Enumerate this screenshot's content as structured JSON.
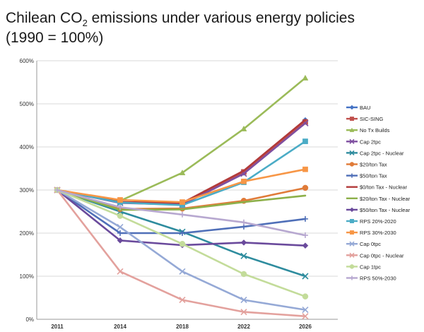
{
  "chart_data": {
    "type": "line",
    "title_parts": [
      "Chilean CO",
      "2",
      " emissions under various energy policies"
    ],
    "title_line2": "(1990 = 100%)",
    "categories": [
      "2011",
      "2014",
      "2018",
      "2022",
      "2026"
    ],
    "ylim": [
      0,
      600
    ],
    "yticks": [
      0,
      100,
      200,
      300,
      400,
      500,
      600
    ],
    "ytick_labels": [
      "0%",
      "100%",
      "200%",
      "300%",
      "400%",
      "500%",
      "600%"
    ],
    "grid": true,
    "legend_position": "right",
    "series": [
      {
        "name": "BAU",
        "color": "#4472C4",
        "marker": "diamond",
        "values": [
          300,
          272,
          270,
          340,
          462
        ]
      },
      {
        "name": "SIC-SING",
        "color": "#C0504D",
        "marker": "square",
        "values": [
          300,
          272,
          268,
          342,
          458
        ]
      },
      {
        "name": "No Tx Builds",
        "color": "#9BBB59",
        "marker": "triangle",
        "values": [
          300,
          275,
          340,
          442,
          560
        ]
      },
      {
        "name": "Cap 2tpc",
        "color": "#7F4FA0",
        "marker": "x",
        "values": [
          300,
          270,
          266,
          338,
          455
        ]
      },
      {
        "name": "Cap 2tpc - Nuclear",
        "color": "#2E8C9E",
        "marker": "x",
        "values": [
          300,
          250,
          203,
          147,
          100
        ]
      },
      {
        "name": "$20/ton Tax",
        "color": "#E07B39",
        "marker": "circle",
        "values": [
          300,
          256,
          257,
          275,
          305
        ]
      },
      {
        "name": "$50/ton Tax",
        "color": "#4F6FB8",
        "marker": "plus",
        "values": [
          300,
          200,
          200,
          215,
          233
        ]
      },
      {
        "name": "$0/ton Tax - Nuclear",
        "color": "#B23A3A",
        "marker": "none",
        "values": [
          300,
          272,
          270,
          345,
          463
        ]
      },
      {
        "name": "$20/ton Tax - Nuclear",
        "color": "#8DB04A",
        "marker": "none",
        "values": [
          300,
          254,
          255,
          272,
          287
        ]
      },
      {
        "name": "$50/ton Tax - Nuclear",
        "color": "#6A4A9C",
        "marker": "diamond",
        "values": [
          300,
          183,
          172,
          178,
          171
        ]
      },
      {
        "name": "RPS 20%-2020",
        "color": "#4BACC6",
        "marker": "square",
        "values": [
          300,
          271,
          265,
          318,
          413
        ]
      },
      {
        "name": "RPS 30%-2030",
        "color": "#F79646",
        "marker": "square",
        "values": [
          300,
          277,
          272,
          320,
          348
        ]
      },
      {
        "name": "Cap 0tpc",
        "color": "#95A9D6",
        "marker": "x",
        "values": [
          300,
          214,
          111,
          45,
          22
        ]
      },
      {
        "name": "Cap 0tpc - Nuclear",
        "color": "#E3A19D",
        "marker": "x",
        "values": [
          300,
          111,
          45,
          17,
          7
        ]
      },
      {
        "name": "Cap 1tpc",
        "color": "#C3DC9A",
        "marker": "circle",
        "values": [
          300,
          240,
          175,
          105,
          53
        ]
      },
      {
        "name": "RPS 50%-2030",
        "color": "#B7A8D0",
        "marker": "plus",
        "values": [
          300,
          260,
          243,
          225,
          195
        ]
      }
    ]
  }
}
